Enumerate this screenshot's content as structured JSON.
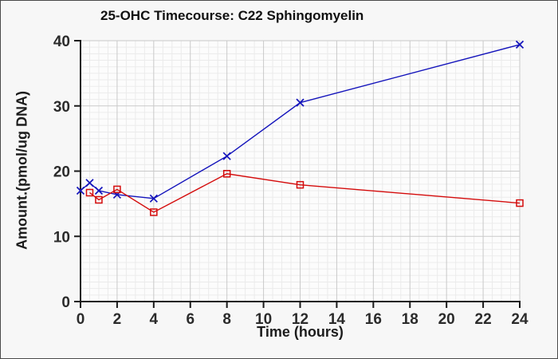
{
  "figure": {
    "background": "#f7f7f7",
    "border_color": "#4a4a4a",
    "plot_background": "#fcfcfc",
    "minor_grid_color": "#ebebeb",
    "major_grid_color": "#c9c9c9",
    "axis_color": "#1a1a1a",
    "tick_label_color": "#2b2b2b"
  },
  "chart_data": {
    "type": "line",
    "title": "25-OHC Timecourse: C22 Sphingomyelin",
    "xlabel": "Time (hours)",
    "ylabel": "Amount.(pmol/ug DNA)",
    "xlim": [
      0,
      24
    ],
    "ylim": [
      0,
      40
    ],
    "xticks": [
      0,
      2,
      4,
      6,
      8,
      10,
      12,
      14,
      16,
      18,
      20,
      22,
      24
    ],
    "yticks": [
      0,
      10,
      20,
      30,
      40
    ],
    "minor_grid": {
      "x_step": 0.5,
      "y_step": 1
    },
    "grid": true,
    "legend_position": "none",
    "series": [
      {
        "name": "blue-x-series",
        "color": "#1212bb",
        "marker": "x",
        "x": [
          0,
          0.5,
          1,
          2,
          4,
          8,
          12,
          24
        ],
        "y": [
          17.0,
          18.2,
          17.0,
          16.4,
          15.8,
          22.3,
          30.5,
          39.4
        ]
      },
      {
        "name": "red-open-square-series",
        "color": "#d40b0b",
        "marker": "square-open",
        "x": [
          0.5,
          1,
          2,
          4,
          8,
          12,
          24
        ],
        "y": [
          16.7,
          15.6,
          17.2,
          13.7,
          19.6,
          17.9,
          15.1
        ]
      }
    ]
  }
}
